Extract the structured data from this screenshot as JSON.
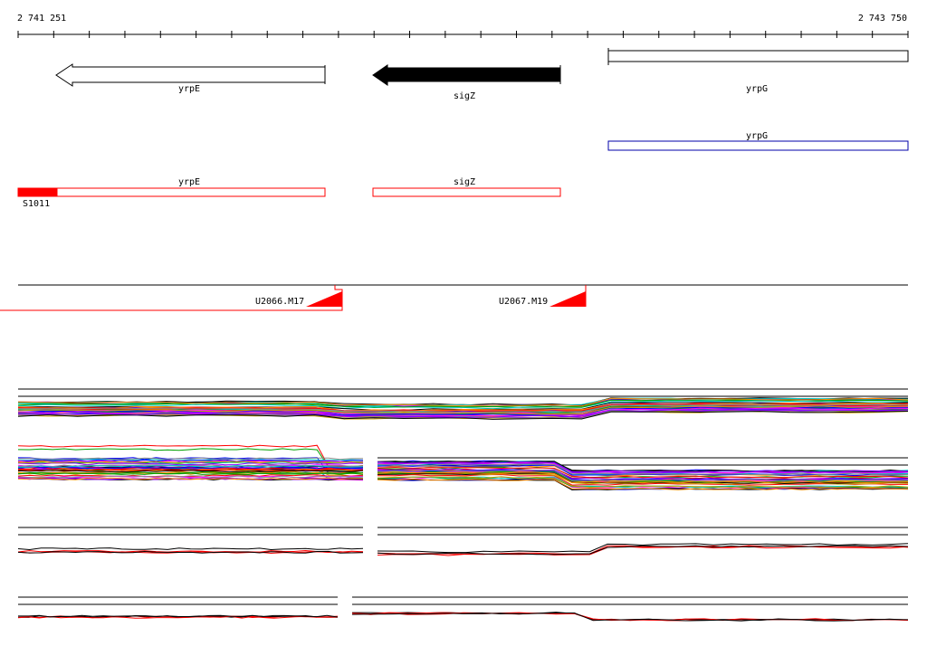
{
  "ruler": {
    "start_label": "2 741 251",
    "end_label": "2 743 750"
  },
  "genes": [
    {
      "name": "yrpE",
      "strand": "-",
      "style": "outline"
    },
    {
      "name": "sigZ",
      "strand": "-",
      "style": "filled"
    },
    {
      "name": "yrpG",
      "strand": "+",
      "style": "outline"
    }
  ],
  "blue_annotation": {
    "label": "yrpG"
  },
  "red_annotations": [
    {
      "label": "yrpE"
    },
    {
      "label": "sigZ"
    }
  ],
  "feature_label": "S1011",
  "oligos": [
    {
      "label": "U2066.M17"
    },
    {
      "label": "U2067.M19"
    }
  ],
  "colors": {
    "gene_filled": "#000000",
    "annotation_red": "#ff0000",
    "annotation_blue": "#0000aa",
    "trace_palette": [
      "#ff0000",
      "#00a000",
      "#0000ff",
      "#ff00ff",
      "#00c8c8",
      "#c8a000",
      "#000000",
      "#8800ff",
      "#ff8800",
      "#888888"
    ]
  }
}
